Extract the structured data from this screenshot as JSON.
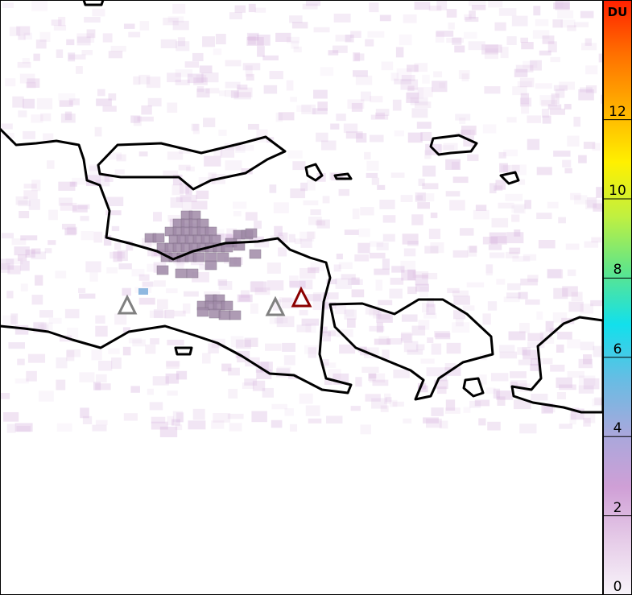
{
  "colorbar": {
    "unit": "DU",
    "ticks": [
      "0",
      "2",
      "4",
      "6",
      "8",
      "10",
      "12"
    ],
    "tick_values": [
      0,
      2,
      4,
      6,
      8,
      10,
      12
    ],
    "range": [
      0,
      15
    ],
    "colors": [
      "#f8f4fa",
      "#e6cce8",
      "#cf9fd6",
      "#a7a8dc",
      "#66bde4",
      "#12e0ec",
      "#5fe58a",
      "#c0f040",
      "#fff000",
      "#ffb000",
      "#ff7000",
      "#ff2000"
    ]
  },
  "volcanoes": [
    {
      "status": "inactive",
      "color": "#808080"
    },
    {
      "status": "inactive",
      "color": "#808080"
    },
    {
      "status": "active",
      "color": "#8b0000"
    }
  ],
  "coastline_color": "#000000",
  "plume_color": "#a08aa8"
}
